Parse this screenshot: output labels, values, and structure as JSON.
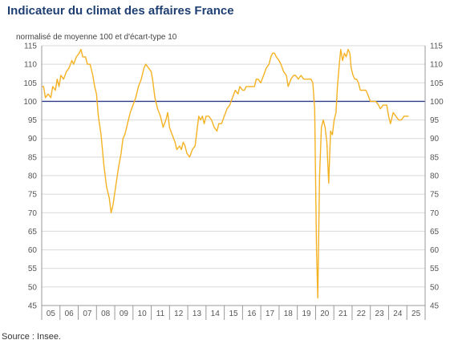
{
  "title": "Indicateur du climat des affaires France",
  "subtitle": "normalisé de moyenne 100 et d'écart-type 10",
  "source": "Source : Insee.",
  "chart_data": {
    "type": "line",
    "title": "Indicateur du climat des affaires France",
    "subtitle": "normalisé de moyenne 100 et d'écart-type 10",
    "xlabel": "",
    "ylabel": "",
    "ylim": [
      45,
      115
    ],
    "y_ticks": [
      45,
      50,
      55,
      60,
      65,
      70,
      75,
      80,
      85,
      90,
      95,
      100,
      105,
      110,
      115
    ],
    "x_tick_labels": [
      "05",
      "06",
      "07",
      "08",
      "09",
      "10",
      "11",
      "12",
      "13",
      "14",
      "15",
      "16",
      "17",
      "18",
      "19",
      "20",
      "21",
      "22",
      "23",
      "24",
      "25"
    ],
    "x_range": [
      2005.0,
      2026.0
    ],
    "right_axis_mirror": true,
    "reference_line": 100,
    "grid": "horizontal",
    "colors": {
      "series": "#f4b223",
      "reference": "#2e3a8c",
      "grid": "#d9d9d9",
      "title": "#1f3f73"
    },
    "series": [
      {
        "values": [
          [
            2005.0,
            104
          ],
          [
            2005.1,
            104
          ],
          [
            2005.2,
            101
          ],
          [
            2005.35,
            102
          ],
          [
            2005.5,
            101
          ],
          [
            2005.6,
            104
          ],
          [
            2005.75,
            103
          ],
          [
            2005.85,
            106
          ],
          [
            2005.95,
            104
          ],
          [
            2006.05,
            107
          ],
          [
            2006.2,
            106
          ],
          [
            2006.35,
            108
          ],
          [
            2006.5,
            109
          ],
          [
            2006.65,
            111
          ],
          [
            2006.75,
            110
          ],
          [
            2006.9,
            112
          ],
          [
            2007.05,
            113
          ],
          [
            2007.15,
            114
          ],
          [
            2007.25,
            112
          ],
          [
            2007.4,
            112
          ],
          [
            2007.5,
            110
          ],
          [
            2007.65,
            110
          ],
          [
            2007.8,
            107
          ],
          [
            2007.9,
            104
          ],
          [
            2008.0,
            102
          ],
          [
            2008.1,
            96
          ],
          [
            2008.25,
            91
          ],
          [
            2008.4,
            83
          ],
          [
            2008.55,
            77
          ],
          [
            2008.7,
            74
          ],
          [
            2008.8,
            70
          ],
          [
            2008.9,
            72
          ],
          [
            2009.05,
            77
          ],
          [
            2009.2,
            82
          ],
          [
            2009.35,
            86
          ],
          [
            2009.45,
            90
          ],
          [
            2009.55,
            91
          ],
          [
            2009.7,
            94
          ],
          [
            2009.85,
            97
          ],
          [
            2010.0,
            99
          ],
          [
            2010.15,
            101
          ],
          [
            2010.3,
            104
          ],
          [
            2010.45,
            106
          ],
          [
            2010.6,
            109
          ],
          [
            2010.7,
            110
          ],
          [
            2010.85,
            109
          ],
          [
            2011.0,
            108
          ],
          [
            2011.1,
            105
          ],
          [
            2011.2,
            101
          ],
          [
            2011.35,
            98
          ],
          [
            2011.5,
            96
          ],
          [
            2011.65,
            93
          ],
          [
            2011.8,
            95
          ],
          [
            2011.9,
            97
          ],
          [
            2012.0,
            93
          ],
          [
            2012.15,
            91
          ],
          [
            2012.3,
            89
          ],
          [
            2012.4,
            87
          ],
          [
            2012.55,
            88
          ],
          [
            2012.65,
            87
          ],
          [
            2012.75,
            89
          ],
          [
            2012.85,
            88
          ],
          [
            2012.95,
            86
          ],
          [
            2013.1,
            85
          ],
          [
            2013.25,
            87
          ],
          [
            2013.4,
            88
          ],
          [
            2013.5,
            92
          ],
          [
            2013.6,
            96
          ],
          [
            2013.7,
            95
          ],
          [
            2013.8,
            96
          ],
          [
            2013.9,
            94
          ],
          [
            2014.0,
            96
          ],
          [
            2014.15,
            96
          ],
          [
            2014.3,
            95
          ],
          [
            2014.45,
            93
          ],
          [
            2014.6,
            92
          ],
          [
            2014.7,
            94
          ],
          [
            2014.85,
            94
          ],
          [
            2015.0,
            96
          ],
          [
            2015.15,
            98
          ],
          [
            2015.3,
            99
          ],
          [
            2015.45,
            101
          ],
          [
            2015.6,
            103
          ],
          [
            2015.75,
            102
          ],
          [
            2015.85,
            104
          ],
          [
            2016.0,
            103
          ],
          [
            2016.1,
            103
          ],
          [
            2016.2,
            104
          ],
          [
            2016.35,
            104
          ],
          [
            2016.5,
            104
          ],
          [
            2016.65,
            104
          ],
          [
            2016.75,
            106
          ],
          [
            2016.85,
            106
          ],
          [
            2017.0,
            105
          ],
          [
            2017.15,
            107
          ],
          [
            2017.3,
            109
          ],
          [
            2017.45,
            110
          ],
          [
            2017.55,
            112
          ],
          [
            2017.65,
            113
          ],
          [
            2017.75,
            113
          ],
          [
            2017.85,
            112
          ],
          [
            2018.0,
            111
          ],
          [
            2018.1,
            110
          ],
          [
            2018.25,
            108
          ],
          [
            2018.4,
            107
          ],
          [
            2018.5,
            104
          ],
          [
            2018.65,
            106
          ],
          [
            2018.8,
            107
          ],
          [
            2018.9,
            107
          ],
          [
            2019.05,
            106
          ],
          [
            2019.2,
            107
          ],
          [
            2019.35,
            106
          ],
          [
            2019.5,
            106
          ],
          [
            2019.65,
            106
          ],
          [
            2019.75,
            106
          ],
          [
            2019.85,
            105
          ],
          [
            2019.95,
            98
          ],
          [
            2020.05,
            60
          ],
          [
            2020.12,
            47
          ],
          [
            2020.22,
            80
          ],
          [
            2020.32,
            93
          ],
          [
            2020.42,
            95
          ],
          [
            2020.52,
            93
          ],
          [
            2020.62,
            89
          ],
          [
            2020.72,
            78
          ],
          [
            2020.82,
            92
          ],
          [
            2020.92,
            91
          ],
          [
            2021.02,
            95
          ],
          [
            2021.12,
            97
          ],
          [
            2021.2,
            104
          ],
          [
            2021.3,
            110
          ],
          [
            2021.38,
            114
          ],
          [
            2021.48,
            111
          ],
          [
            2021.58,
            113
          ],
          [
            2021.68,
            112
          ],
          [
            2021.78,
            114
          ],
          [
            2021.88,
            113
          ],
          [
            2021.95,
            109
          ],
          [
            2022.05,
            107
          ],
          [
            2022.15,
            106
          ],
          [
            2022.25,
            106
          ],
          [
            2022.35,
            105
          ],
          [
            2022.45,
            103
          ],
          [
            2022.55,
            103
          ],
          [
            2022.65,
            103
          ],
          [
            2022.75,
            103
          ],
          [
            2022.85,
            102
          ],
          [
            2023.0,
            100
          ],
          [
            2023.15,
            100
          ],
          [
            2023.3,
            100
          ],
          [
            2023.45,
            99
          ],
          [
            2023.55,
            98
          ],
          [
            2023.7,
            99
          ],
          [
            2023.8,
            99
          ],
          [
            2023.9,
            99
          ],
          [
            2024.0,
            96
          ],
          [
            2024.1,
            94
          ],
          [
            2024.25,
            97
          ],
          [
            2024.4,
            96
          ],
          [
            2024.55,
            95
          ],
          [
            2024.7,
            95
          ],
          [
            2024.85,
            96
          ],
          [
            2025.0,
            96
          ],
          [
            2025.1,
            96
          ]
        ]
      }
    ]
  }
}
